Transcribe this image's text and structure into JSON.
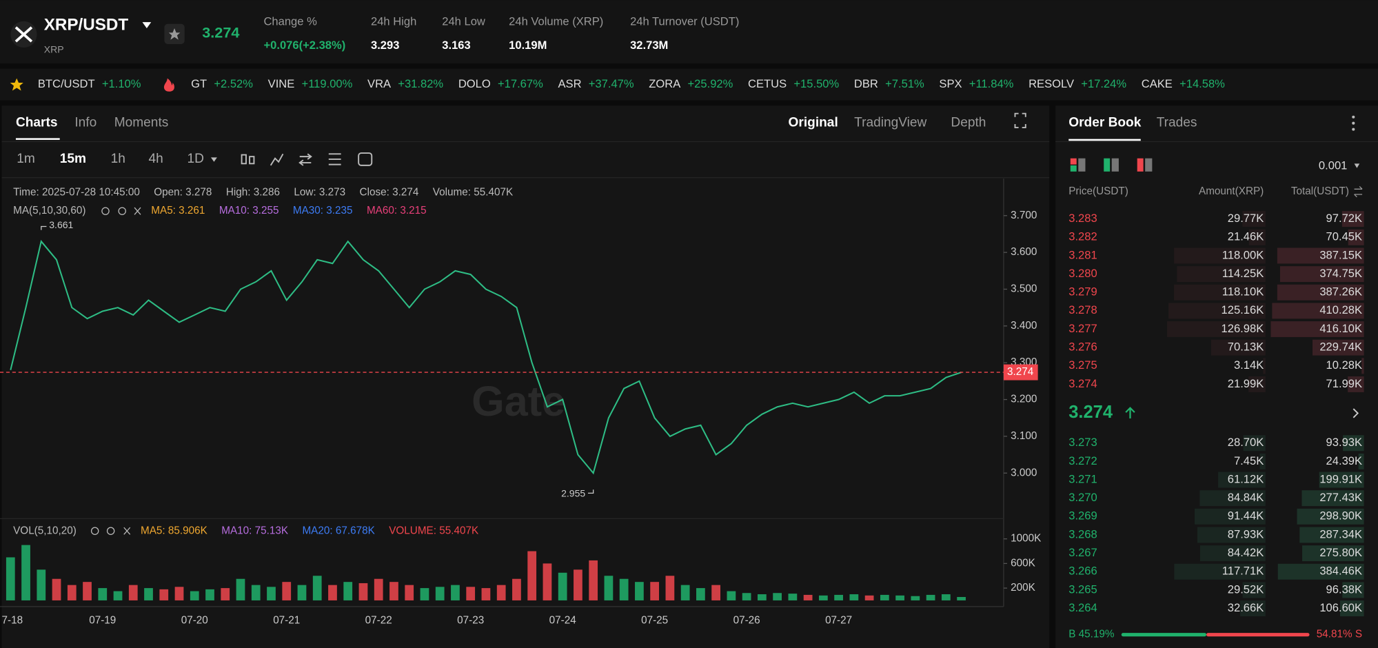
{
  "header": {
    "symbol": "XRP/USDT",
    "base": "XRP",
    "price": "3.274",
    "stats": [
      {
        "label": "Change %",
        "value": "+0.076(+2.38%)"
      },
      {
        "label": "24h High",
        "value": "3.293"
      },
      {
        "label": "24h Low",
        "value": "3.163"
      },
      {
        "label": "24h Volume (XRP)",
        "value": "10.19M"
      },
      {
        "label": "24h Turnover (USDT)",
        "value": "32.73M"
      }
    ]
  },
  "ticker": [
    {
      "name": "BTC/USDT",
      "change": "+1.10%"
    },
    {
      "name": "GT",
      "change": "+2.52%"
    },
    {
      "name": "VINE",
      "change": "+119.00%"
    },
    {
      "name": "VRA",
      "change": "+31.82%"
    },
    {
      "name": "DOLO",
      "change": "+17.67%"
    },
    {
      "name": "ASR",
      "change": "+37.47%"
    },
    {
      "name": "ZORA",
      "change": "+25.92%"
    },
    {
      "name": "CETUS",
      "change": "+15.50%"
    },
    {
      "name": "DBR",
      "change": "+7.51%"
    },
    {
      "name": "SPX",
      "change": "+11.84%"
    },
    {
      "name": "RESOLV",
      "change": "+17.24%"
    },
    {
      "name": "CAKE",
      "change": "+14.58%"
    }
  ],
  "chart_panel": {
    "tabs": [
      "Charts",
      "Info",
      "Moments"
    ],
    "views": [
      "Original",
      "TradingView",
      "Depth"
    ],
    "intervals": [
      "1m",
      "15m",
      "1h",
      "4h",
      "1D"
    ],
    "info": [
      "Time: 2025-07-28 10:45:00",
      "Open: 3.278",
      "High: 3.286",
      "Low: 3.273",
      "Close: 3.274",
      "Volume: 55.407K"
    ],
    "ma_title": "MA(5,10,30,60)",
    "ma": [
      {
        "label": "MA5: 3.261",
        "color": "#f0a830"
      },
      {
        "label": "MA10: 3.255",
        "color": "#b86ee0"
      },
      {
        "label": "MA30: 3.235",
        "color": "#3d7cf5"
      },
      {
        "label": "MA60: 3.215",
        "color": "#e8407a"
      }
    ],
    "vol_title": "VOL(5,10,20)",
    "vol_ma": [
      {
        "label": "MA5: 85.906K",
        "color": "#f0a830"
      },
      {
        "label": "MA10: 75.13K",
        "color": "#b86ee0"
      },
      {
        "label": "MA20: 67.678K",
        "color": "#3d7cf5"
      },
      {
        "label": "VOLUME: 55.407K",
        "color": "#f0464d"
      }
    ],
    "watermark": "Gate"
  },
  "chart_data": [
    {
      "type": "line",
      "color": "#2ebd85",
      "values": [
        3.28,
        3.45,
        3.63,
        3.58,
        3.45,
        3.42,
        3.44,
        3.45,
        3.43,
        3.47,
        3.44,
        3.41,
        3.43,
        3.45,
        3.44,
        3.5,
        3.52,
        3.55,
        3.47,
        3.52,
        3.58,
        3.57,
        3.63,
        3.58,
        3.55,
        3.5,
        3.45,
        3.5,
        3.52,
        3.55,
        3.54,
        3.5,
        3.48,
        3.45,
        3.3,
        3.18,
        3.2,
        3.05,
        3.0,
        3.15,
        3.23,
        3.25,
        3.15,
        3.1,
        3.12,
        3.13,
        3.05,
        3.08,
        3.13,
        3.16,
        3.18,
        3.19,
        3.18,
        3.19,
        3.2,
        3.22,
        3.19,
        3.21,
        3.21,
        3.22,
        3.23,
        3.26,
        3.274
      ],
      "ylim": [
        2.888,
        3.796
      ],
      "yticks": [
        {
          "value": 3.0,
          "label": "3.000"
        },
        {
          "value": 3.1,
          "label": "3.100"
        },
        {
          "value": 3.2,
          "label": "3.200"
        },
        {
          "value": 3.3,
          "label": "3.300"
        },
        {
          "value": 3.4,
          "label": "3.400"
        },
        {
          "value": 3.5,
          "label": "3.500"
        },
        {
          "value": 3.6,
          "label": "3.600"
        },
        {
          "value": 3.7,
          "label": "3.700"
        }
      ],
      "last_price": {
        "value": 3.274,
        "label": "3.274"
      },
      "high_marker": {
        "value": 3.661,
        "label": "3.661"
      },
      "low_marker": {
        "value": 2.955,
        "label": "2.955"
      }
    },
    {
      "type": "bar",
      "colors": {
        "up": "#20b26c",
        "down": "#f0464d"
      },
      "categories": [
        "7-18",
        null,
        null,
        null,
        null,
        null,
        "07-19",
        null,
        null,
        null,
        null,
        null,
        "07-20",
        null,
        null,
        null,
        null,
        null,
        "07-21",
        null,
        null,
        null,
        null,
        null,
        "07-22",
        null,
        null,
        null,
        null,
        null,
        "07-23",
        null,
        null,
        null,
        null,
        null,
        "07-24",
        null,
        null,
        null,
        null,
        null,
        "07-25",
        null,
        null,
        null,
        null,
        null,
        "07-26",
        null,
        null,
        null,
        null,
        null,
        "07-27",
        null,
        null,
        null,
        null,
        null,
        null,
        null,
        null
      ],
      "values": [
        700000,
        900000,
        500000,
        350000,
        250000,
        300000,
        200000,
        150000,
        250000,
        200000,
        180000,
        220000,
        150000,
        180000,
        200000,
        350000,
        250000,
        220000,
        300000,
        250000,
        400000,
        250000,
        300000,
        280000,
        350000,
        300000,
        250000,
        200000,
        220000,
        250000,
        220000,
        200000,
        250000,
        350000,
        800000,
        600000,
        450000,
        500000,
        650000,
        400000,
        350000,
        300000,
        300000,
        400000,
        250000,
        200000,
        250000,
        150000,
        120000,
        100000,
        120000,
        110000,
        90000,
        80000,
        90000,
        100000,
        80000,
        90000,
        80000,
        70000,
        90000,
        100000,
        55407
      ],
      "ylim": [
        0,
        1257000
      ],
      "yticks": [
        {
          "value": 200000,
          "label": "200K"
        },
        {
          "value": 600000,
          "label": "600K"
        },
        {
          "value": 1000000,
          "label": "1000K"
        }
      ]
    }
  ],
  "order_book": {
    "tabs": [
      "Order Book",
      "Trades"
    ],
    "precision": "0.001",
    "columns": [
      "Price(USDT)",
      "Amount(XRP)",
      "Total(USDT)"
    ],
    "mid_price": "3.274",
    "asks": [
      {
        "price": "3.283",
        "amount": {
          "value": 29770,
          "label": "29.77K"
        },
        "total": {
          "value": 97720,
          "label": "97.72K"
        }
      },
      {
        "price": "3.282",
        "amount": {
          "value": 21460,
          "label": "21.46K"
        },
        "total": {
          "value": 70450,
          "label": "70.45K"
        }
      },
      {
        "price": "3.281",
        "amount": {
          "value": 118000,
          "label": "118.00K"
        },
        "total": {
          "value": 387150,
          "label": "387.15K"
        }
      },
      {
        "price": "3.280",
        "amount": {
          "value": 114250,
          "label": "114.25K"
        },
        "total": {
          "value": 374750,
          "label": "374.75K"
        }
      },
      {
        "price": "3.279",
        "amount": {
          "value": 118100,
          "label": "118.10K"
        },
        "total": {
          "value": 387260,
          "label": "387.26K"
        }
      },
      {
        "price": "3.278",
        "amount": {
          "value": 125160,
          "label": "125.16K"
        },
        "total": {
          "value": 410280,
          "label": "410.28K"
        }
      },
      {
        "price": "3.277",
        "amount": {
          "value": 126980,
          "label": "126.98K"
        },
        "total": {
          "value": 416100,
          "label": "416.10K"
        }
      },
      {
        "price": "3.276",
        "amount": {
          "value": 70130,
          "label": "70.13K"
        },
        "total": {
          "value": 229740,
          "label": "229.74K"
        }
      },
      {
        "price": "3.275",
        "amount": {
          "value": 3140,
          "label": "3.14K"
        },
        "total": {
          "value": 10280,
          "label": "10.28K"
        }
      },
      {
        "price": "3.274",
        "amount": {
          "value": 21990,
          "label": "21.99K"
        },
        "total": {
          "value": 71990,
          "label": "71.99K"
        }
      }
    ],
    "bids": [
      {
        "price": "3.273",
        "amount": {
          "value": 28700,
          "label": "28.70K"
        },
        "total": {
          "value": 93930,
          "label": "93.93K"
        }
      },
      {
        "price": "3.272",
        "amount": {
          "value": 7450,
          "label": "7.45K"
        },
        "total": {
          "value": 24390,
          "label": "24.39K"
        }
      },
      {
        "price": "3.271",
        "amount": {
          "value": 61120,
          "label": "61.12K"
        },
        "total": {
          "value": 199910,
          "label": "199.91K"
        }
      },
      {
        "price": "3.270",
        "amount": {
          "value": 84840,
          "label": "84.84K"
        },
        "total": {
          "value": 277430,
          "label": "277.43K"
        }
      },
      {
        "price": "3.269",
        "amount": {
          "value": 91440,
          "label": "91.44K"
        },
        "total": {
          "value": 298900,
          "label": "298.90K"
        }
      },
      {
        "price": "3.268",
        "amount": {
          "value": 87930,
          "label": "87.93K"
        },
        "total": {
          "value": 287340,
          "label": "287.34K"
        }
      },
      {
        "price": "3.267",
        "amount": {
          "value": 84420,
          "label": "84.42K"
        },
        "total": {
          "value": 275800,
          "label": "275.80K"
        }
      },
      {
        "price": "3.266",
        "amount": {
          "value": 117710,
          "label": "117.71K"
        },
        "total": {
          "value": 384460,
          "label": "384.46K"
        }
      },
      {
        "price": "3.265",
        "amount": {
          "value": 29520,
          "label": "29.52K"
        },
        "total": {
          "value": 96380,
          "label": "96.38K"
        }
      },
      {
        "price": "3.264",
        "amount": {
          "value": 32660,
          "label": "32.66K"
        },
        "total": {
          "value": 106600,
          "label": "106.60K"
        }
      }
    ],
    "ratio": {
      "buy": {
        "value": 45.19,
        "label": "B 45.19%"
      },
      "sell": {
        "value": 54.81,
        "label": "54.81% S"
      }
    }
  }
}
